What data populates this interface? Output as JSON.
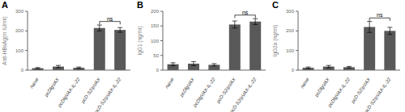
{
  "chart_data": [
    {
      "type": "bar",
      "title": "A",
      "ylabel": "Anti-HBsAg(m IU/ml)",
      "categories": [
        "naive",
        "pcDlgVAX",
        "pcDlgVAX-IL-22",
        "pcD-S2/pVAX",
        "pcD-S2/pVAX-IL-22"
      ],
      "values": [
        10,
        18,
        12,
        215,
        205
      ],
      "errors": [
        3,
        6,
        4,
        15,
        12
      ],
      "color": "#595959",
      "ylim": [
        0,
        300
      ],
      "yticks": [
        0,
        100,
        200,
        300
      ],
      "annotations": [
        {
          "text": "ns",
          "from": "pcD-S2/pVAX",
          "to": "pcD-S2/pVAX-IL-22"
        }
      ]
    },
    {
      "type": "bar",
      "title": "B",
      "ylabel": "IgG1 (ng/ml)",
      "categories": [
        "naive",
        "pcDlgVAX",
        "pcDlgVAX-IL-22",
        "pcD-S2/pVAX",
        "pcD-S2/pVAX-IL-22"
      ],
      "values": [
        20,
        22,
        18,
        155,
        165
      ],
      "errors": [
        5,
        7,
        4,
        12,
        10
      ],
      "color": "#595959",
      "ylim": [
        0,
        200
      ],
      "yticks": [
        0,
        50,
        100,
        150,
        200
      ],
      "annotations": [
        {
          "text": "ns",
          "from": "pcD-S2/pVAX",
          "to": "pcD-S2/pVAX-IL-22"
        }
      ]
    },
    {
      "type": "bar",
      "title": "C",
      "ylabel": "IgG2a (ng/ml)",
      "categories": [
        "naive",
        "pcDlgVAX",
        "pcDlgVAX-IL-22",
        "pcD-S2/pVAX",
        "pcD-S2/pVAX-IL-22"
      ],
      "values": [
        12,
        18,
        15,
        220,
        200
      ],
      "errors": [
        4,
        6,
        4,
        28,
        18
      ],
      "color": "#595959",
      "ylim": [
        0,
        300
      ],
      "yticks": [
        0,
        100,
        200,
        300
      ],
      "annotations": [
        {
          "text": "ns",
          "from": "pcD-S2/pVAX",
          "to": "pcD-S2/pVAX-IL-22"
        }
      ]
    }
  ]
}
